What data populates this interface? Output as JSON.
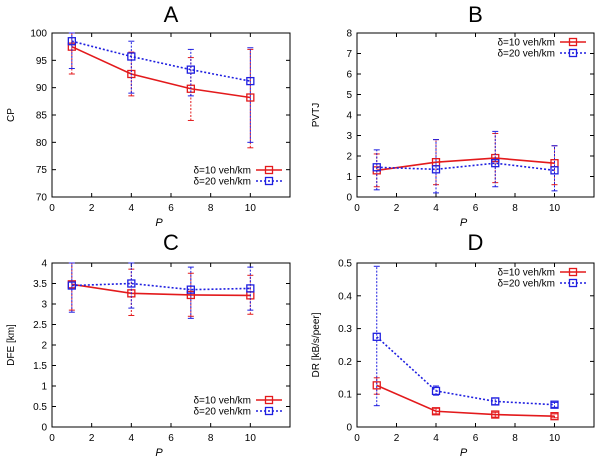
{
  "chart_data": [
    {
      "type": "line",
      "panel_label": "A",
      "title": "A",
      "xlabel": "P",
      "ylabel": "CP",
      "xlim": [
        0,
        12
      ],
      "ylim": [
        70,
        100
      ],
      "xticks": [
        0,
        2,
        4,
        6,
        8,
        10
      ],
      "yticks": [
        70,
        75,
        80,
        85,
        90,
        95,
        100
      ],
      "x": [
        1,
        4,
        7,
        10
      ],
      "legend_position": "bottom-right",
      "series": [
        {
          "name": "δ=10 veh/km",
          "color": "#e31a1c",
          "dash": "solid",
          "values": [
            97.5,
            92.5,
            89.8,
            88.2
          ],
          "err_low": [
            92.5,
            88.5,
            84.0,
            79.0
          ],
          "err_high": [
            100,
            96.5,
            95.5,
            97.0
          ]
        },
        {
          "name": "δ=20 veh/km",
          "color": "#1f1fe0",
          "dash": "dotted",
          "values": [
            98.5,
            95.7,
            93.3,
            91.2
          ],
          "err_low": [
            93.5,
            89.0,
            88.5,
            80.0
          ],
          "err_high": [
            100,
            98.5,
            97.0,
            97.3
          ]
        }
      ]
    },
    {
      "type": "line",
      "panel_label": "B",
      "title": "B",
      "xlabel": "P",
      "ylabel": "PVTJ",
      "xlim": [
        0,
        12
      ],
      "ylim": [
        0,
        8
      ],
      "xticks": [
        0,
        2,
        4,
        6,
        8,
        10
      ],
      "yticks": [
        0,
        1,
        2,
        3,
        4,
        5,
        6,
        7,
        8
      ],
      "x": [
        1,
        4,
        7,
        10
      ],
      "legend_position": "top-right",
      "series": [
        {
          "name": "δ=10 veh/km",
          "color": "#e31a1c",
          "dash": "solid",
          "values": [
            1.3,
            1.7,
            1.9,
            1.65
          ],
          "err_low": [
            0.5,
            0.6,
            0.7,
            0.6
          ],
          "err_high": [
            2.1,
            2.8,
            3.1,
            2.5
          ]
        },
        {
          "name": "δ=20 veh/km",
          "color": "#1f1fe0",
          "dash": "dotted",
          "values": [
            1.45,
            1.35,
            1.65,
            1.3
          ],
          "err_low": [
            0.35,
            0.2,
            0.5,
            0.3
          ],
          "err_high": [
            2.3,
            2.8,
            3.2,
            2.5
          ]
        }
      ]
    },
    {
      "type": "line",
      "panel_label": "C",
      "title": "C",
      "xlabel": "P",
      "ylabel": "DFE [km]",
      "xlim": [
        0,
        12
      ],
      "ylim": [
        0,
        4
      ],
      "xticks": [
        0,
        2,
        4,
        6,
        8,
        10
      ],
      "yticks": [
        0,
        0.5,
        1,
        1.5,
        2,
        2.5,
        3,
        3.5,
        4
      ],
      "x": [
        1,
        4,
        7,
        10
      ],
      "legend_position": "bottom-right",
      "series": [
        {
          "name": "δ=10 veh/km",
          "color": "#e31a1c",
          "dash": "solid",
          "values": [
            3.48,
            3.26,
            3.22,
            3.21
          ],
          "err_low": [
            2.85,
            2.72,
            2.7,
            2.75
          ],
          "err_high": [
            4.0,
            3.85,
            3.75,
            3.7
          ]
        },
        {
          "name": "δ=20 veh/km",
          "color": "#1f1fe0",
          "dash": "dotted",
          "values": [
            3.45,
            3.5,
            3.35,
            3.38
          ],
          "err_low": [
            2.8,
            2.9,
            2.65,
            2.85
          ],
          "err_high": [
            4.0,
            4.0,
            3.9,
            3.9
          ]
        }
      ]
    },
    {
      "type": "line",
      "panel_label": "D",
      "title": "D",
      "xlabel": "P",
      "ylabel": "DR [kB/s/peer]",
      "xlim": [
        0,
        12
      ],
      "ylim": [
        0,
        0.5
      ],
      "xticks": [
        0,
        2,
        4,
        6,
        8,
        10
      ],
      "yticks": [
        0,
        0.1,
        0.2,
        0.3,
        0.4,
        0.5
      ],
      "x": [
        1,
        4,
        7,
        10
      ],
      "legend_position": "top-right",
      "series": [
        {
          "name": "δ=10 veh/km",
          "color": "#e31a1c",
          "dash": "solid",
          "values": [
            0.127,
            0.048,
            0.038,
            0.033
          ],
          "err_low": [
            0.1,
            0.04,
            0.03,
            0.028
          ],
          "err_high": [
            0.15,
            0.057,
            0.045,
            0.04
          ]
        },
        {
          "name": "δ=20 veh/km",
          "color": "#1f1fe0",
          "dash": "dotted",
          "values": [
            0.275,
            0.11,
            0.078,
            0.068
          ],
          "err_low": [
            0.065,
            0.097,
            0.068,
            0.06
          ],
          "err_high": [
            0.49,
            0.125,
            0.088,
            0.075
          ]
        }
      ]
    }
  ]
}
